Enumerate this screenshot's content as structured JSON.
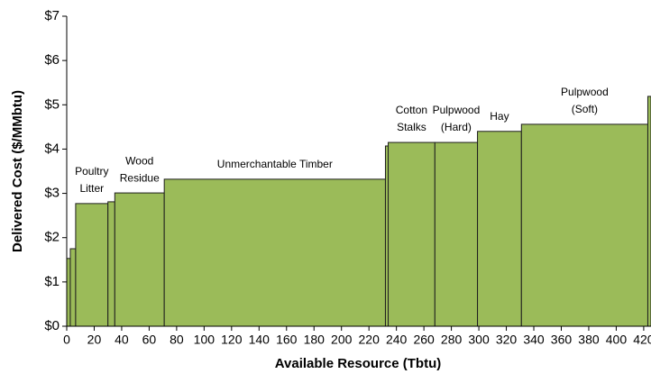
{
  "chart_data": {
    "type": "variable-width-bar",
    "xlabel": "Available Resource (Tbtu)",
    "ylabel": "Delivered Cost ($/MMbtu)",
    "bins": [
      0,
      2.6,
      6.5,
      30,
      35,
      71,
      232,
      234,
      268,
      299,
      331,
      423,
      426
    ],
    "values": [
      1.53,
      1.75,
      2.77,
      2.81,
      3.01,
      3.32,
      4.07,
      4.15,
      4.15,
      4.4,
      4.56,
      5.19
    ],
    "labels": [
      null,
      null,
      [
        "Poultry",
        "Litter"
      ],
      null,
      [
        "Wood",
        "Residue"
      ],
      [
        "Unmerchantable Timber"
      ],
      null,
      [
        "Cotton",
        "Stalks"
      ],
      [
        "Pulpwood",
        "(Hard)"
      ],
      [
        "Hay"
      ],
      [
        "Pulpwood",
        "(Soft)"
      ],
      null
    ],
    "color": "#9bbb59",
    "xlim": [
      0,
      424
    ],
    "ylim": [
      0,
      7
    ],
    "xticks": [
      0,
      20,
      40,
      60,
      80,
      100,
      120,
      140,
      160,
      180,
      200,
      220,
      240,
      260,
      280,
      300,
      320,
      340,
      360,
      380,
      400,
      420
    ],
    "yticks": [
      {
        "value": 0,
        "label": "$0"
      },
      {
        "value": 1,
        "label": "$1"
      },
      {
        "value": 2,
        "label": "$2"
      },
      {
        "value": 3,
        "label": "$3"
      },
      {
        "value": 4,
        "label": "$4"
      },
      {
        "value": 5,
        "label": "$5"
      },
      {
        "value": 6,
        "label": "$6"
      },
      {
        "value": 7,
        "label": "$7"
      }
    ]
  }
}
